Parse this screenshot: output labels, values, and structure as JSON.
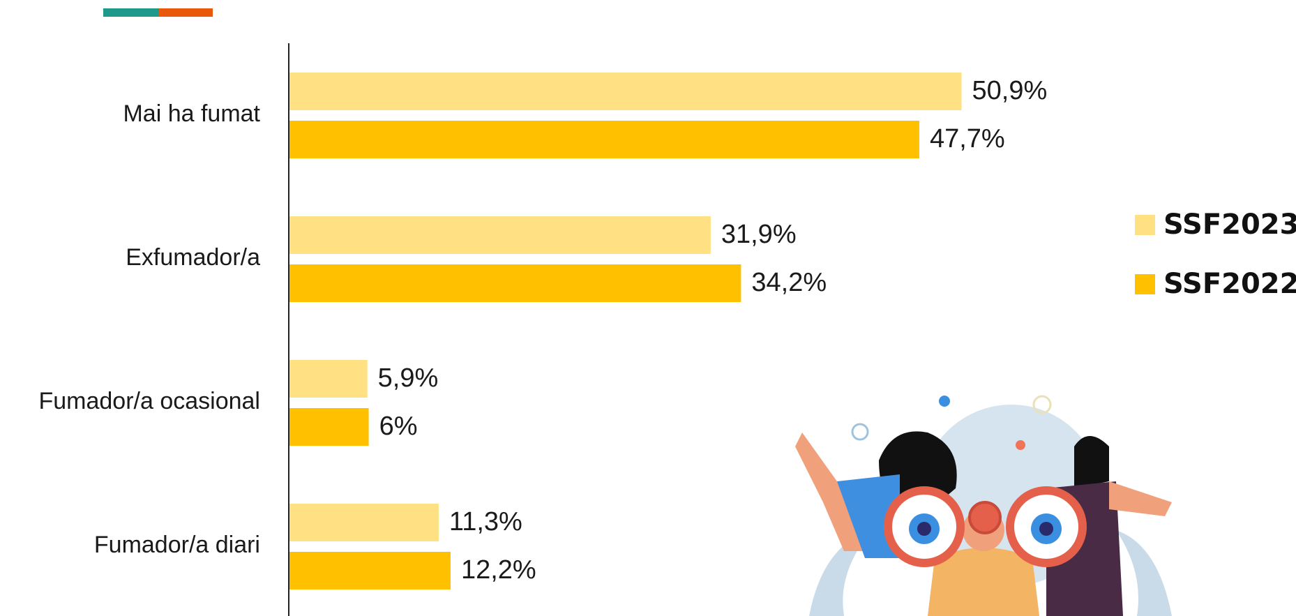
{
  "chart_data": {
    "type": "bar",
    "orientation": "horizontal",
    "categories": [
      "Mai ha fumat",
      "Exfumador/a",
      "Fumador/a ocasional",
      "Fumador/a diari"
    ],
    "series": [
      {
        "name": "SSF2023",
        "color": "#ffe184",
        "values": [
          50.9,
          31.9,
          5.9,
          11.3
        ],
        "value_labels": [
          "50,9%",
          "31,9%",
          "5,9%",
          "11,3%"
        ]
      },
      {
        "name": "SSF2022",
        "color": "#ffc000",
        "values": [
          47.7,
          34.2,
          6,
          12.2
        ],
        "value_labels": [
          "47,7%",
          "34,2%",
          "6%",
          "12,2%"
        ]
      }
    ],
    "legend": "right"
  }
}
